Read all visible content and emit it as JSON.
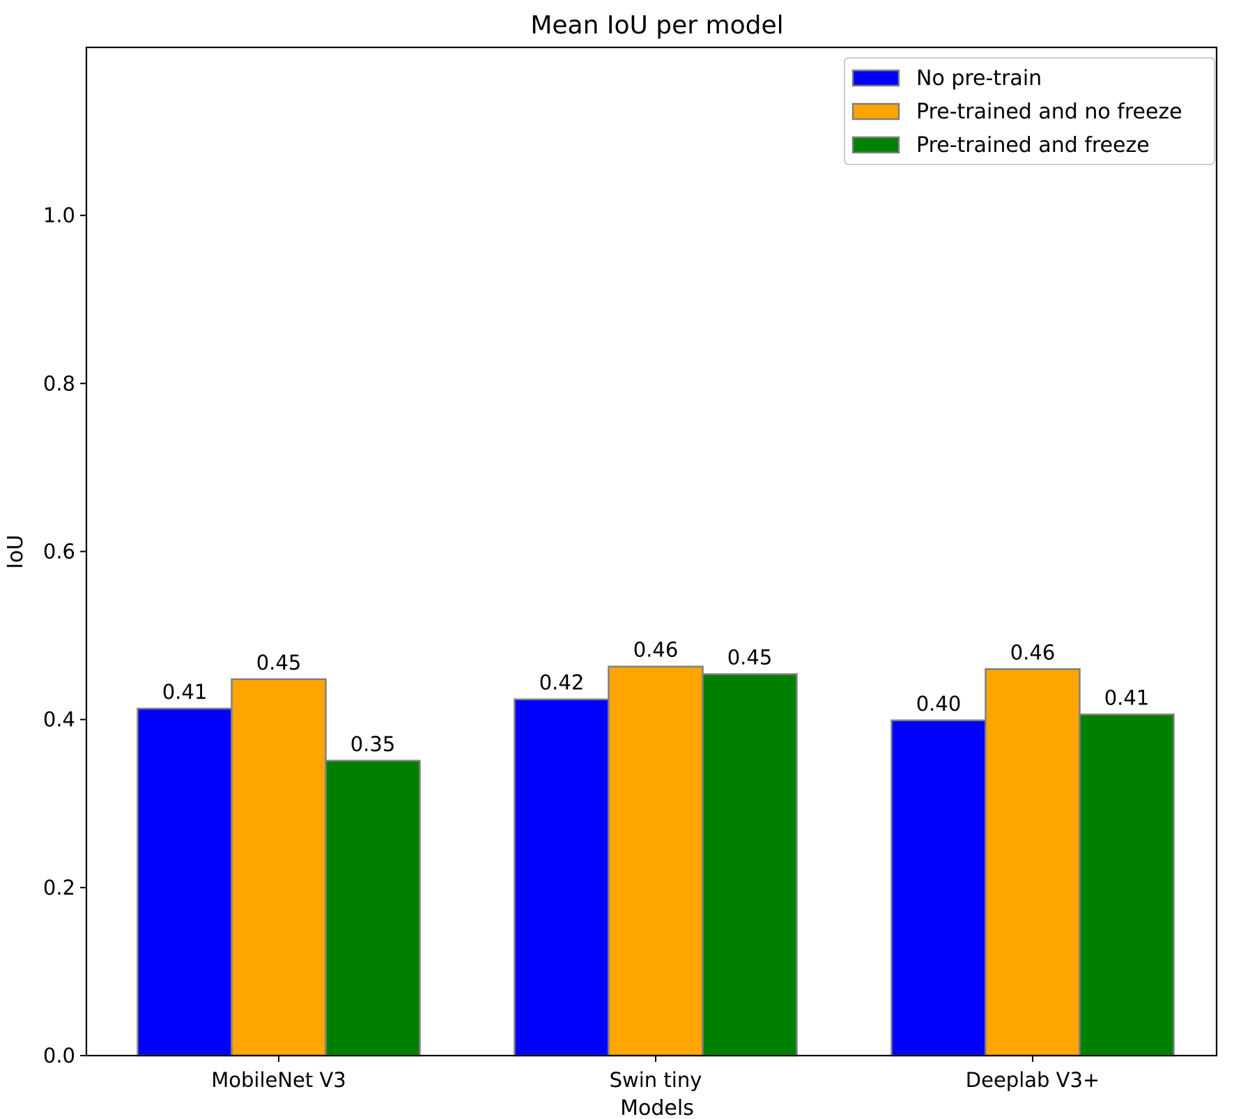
{
  "chart_data": {
    "type": "bar",
    "title": "Mean IoU per model",
    "xlabel": "Models",
    "ylabel": "IoU",
    "categories": [
      "MobileNet V3",
      "Swin tiny",
      "Deeplab V3+"
    ],
    "series": [
      {
        "name": "No pre-train",
        "color": "#0000ff",
        "values": [
          0.413,
          0.424,
          0.399
        ],
        "labels": [
          "0.41",
          "0.42",
          "0.40"
        ]
      },
      {
        "name": "Pre-trained and no freeze",
        "color": "#ffa500",
        "values": [
          0.448,
          0.463,
          0.46
        ],
        "labels": [
          "0.45",
          "0.46",
          "0.46"
        ]
      },
      {
        "name": "Pre-trained and freeze",
        "color": "#008000",
        "values": [
          0.351,
          0.454,
          0.406
        ],
        "labels": [
          "0.35",
          "0.45",
          "0.41"
        ]
      }
    ],
    "ylim": [
      0,
      1.2
    ],
    "yticks": [
      0.0,
      0.2,
      0.4,
      0.6,
      0.8,
      1.0
    ],
    "ytick_labels": [
      "0.0",
      "0.2",
      "0.4",
      "0.6",
      "0.8",
      "1.0"
    ],
    "bar_edge_color": "#808080",
    "grid": false,
    "legend_position": "top-right"
  }
}
